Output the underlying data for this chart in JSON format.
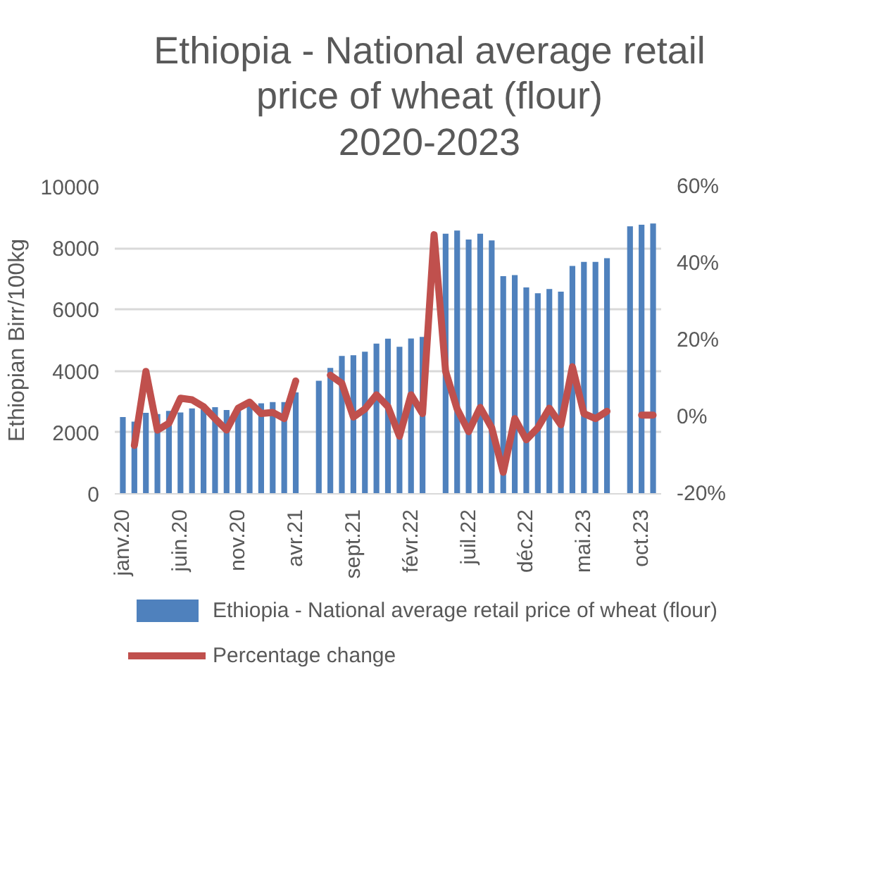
{
  "chart_data": {
    "type": "bar",
    "title": "Ethiopia - National average retail\nprice of wheat (flour)\n2020-2023",
    "ylabel": "Ethiopian Birr/100kg",
    "categories": [
      "janv.20",
      null,
      null,
      null,
      null,
      "juin.20",
      null,
      null,
      null,
      null,
      "nov.20",
      null,
      null,
      null,
      null,
      "avr.21",
      null,
      null,
      null,
      null,
      "sept.21",
      null,
      null,
      null,
      null,
      "févr.22",
      null,
      null,
      null,
      null,
      "juil.22",
      null,
      null,
      null,
      null,
      "déc.22",
      null,
      null,
      null,
      null,
      "mai.23",
      null,
      null,
      null,
      null,
      "oct.23",
      null
    ],
    "series": [
      {
        "name": "Ethiopia - National average retail price of wheat (flour)",
        "color": "#4f81bd",
        "values": [
          2500,
          2350,
          2640,
          2600,
          2700,
          2650,
          2780,
          2750,
          2820,
          2730,
          2840,
          2960,
          2950,
          2990,
          2990,
          3300,
          null,
          3680,
          4100,
          4490,
          4510,
          4630,
          4890,
          5050,
          4790,
          5060,
          5110,
          null,
          8470,
          8570,
          8280,
          8470,
          8250,
          7090,
          7120,
          6720,
          6530,
          6670,
          6580,
          7420,
          7550,
          7550,
          7670,
          null,
          8710,
          8760,
          8800
        ]
      },
      {
        "name": "Percentage change",
        "type": "line",
        "axis": "y2",
        "color": "#c0504d",
        "values": [
          null,
          -7.4,
          11.9,
          -3.4,
          -1.6,
          4.9,
          4.5,
          2.7,
          -0.4,
          -3.4,
          2.3,
          3.9,
          0.9,
          1.2,
          -0.4,
          9.4,
          null,
          null,
          10.9,
          8.8,
          0,
          2.1,
          5.8,
          2.7,
          -5,
          5.8,
          0.9,
          47.5,
          11.9,
          2.1,
          -3.8,
          2.5,
          -2.8,
          -14.4,
          -0.4,
          -5.9,
          -2.8,
          2.3,
          -2,
          13.1,
          0.9,
          -0.4,
          1.5,
          null,
          null,
          0.5,
          0.5
        ]
      }
    ],
    "ylim": [
      0,
      10000
    ],
    "yticks": [
      0,
      2000,
      4000,
      6000,
      8000,
      10000
    ],
    "y2lim": [
      -20,
      60
    ],
    "y2ticks": [
      {
        "value": -20,
        "label": "-20%"
      },
      {
        "value": 0,
        "label": "0%"
      },
      {
        "value": 20,
        "label": "20%"
      },
      {
        "value": 40,
        "label": "40%"
      },
      {
        "value": 60,
        "label": "60%"
      }
    ],
    "grid": "y",
    "legend": "bottom"
  }
}
